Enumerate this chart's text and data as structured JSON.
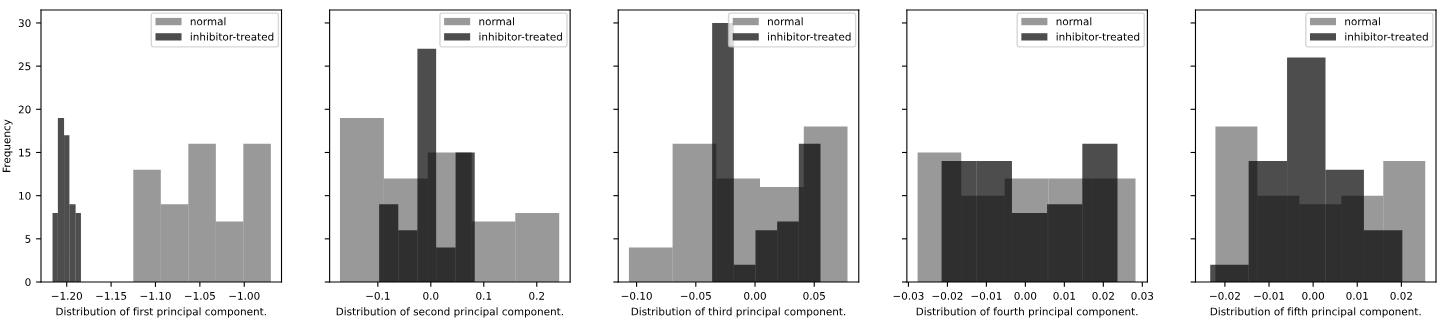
{
  "chart_data": [
    {
      "type": "histogram",
      "xlabel": "Distribution of first principal component.",
      "ylabel": "Frequency",
      "xlim": [
        -1.229,
        -0.958
      ],
      "xticks": [
        {
          "value": -1.2,
          "label": "−1.20"
        },
        {
          "value": -1.15,
          "label": "−1.15"
        },
        {
          "value": -1.1,
          "label": "−1.10"
        },
        {
          "value": -1.05,
          "label": "−1.05"
        },
        {
          "value": -1.0,
          "label": "−1.00"
        }
      ],
      "ylim": [
        0,
        31.5
      ],
      "yticks": [
        0,
        5,
        10,
        15,
        20,
        25,
        30
      ],
      "legend": "top right",
      "bins": [
        -1.125,
        -1.094,
        -1.063,
        -1.032,
        -1.001,
        -0.97
      ],
      "series": [
        {
          "name": "normal",
          "color": "#999999",
          "values": [
            13,
            9,
            16,
            7,
            16
          ]
        },
        {
          "name": "inhibitor-treated",
          "color": "#4d4d4d",
          "bins": [
            -1.216,
            -1.21,
            -1.203,
            -1.197,
            -1.19,
            -1.184
          ],
          "values": [
            8,
            19,
            17,
            9,
            8
          ]
        }
      ]
    },
    {
      "type": "histogram",
      "xlabel": "Distribution of second principal component.",
      "xlim": [
        -0.191,
        0.263
      ],
      "xticks": [
        {
          "value": -0.1,
          "label": "−0.1"
        },
        {
          "value": 0.0,
          "label": "0.0"
        },
        {
          "value": 0.1,
          "label": "0.1"
        },
        {
          "value": 0.2,
          "label": "0.2"
        }
      ],
      "ylim": [
        0,
        31.5
      ],
      "yticks": [
        0,
        5,
        10,
        15,
        20,
        25,
        30
      ],
      "tick_labels": "x",
      "legend": "top right",
      "bins": [
        -0.1715,
        -0.0886,
        -0.0057,
        0.0772,
        0.1595,
        0.2424
      ],
      "series": [
        {
          "name": "normal",
          "color": "#999999",
          "values": [
            19,
            12,
            15,
            7,
            8
          ]
        },
        {
          "name": "inhibitor-treated",
          "color": "#4d4d4d",
          "bins": [
            -0.0975,
            -0.0614,
            -0.0253,
            0.0101,
            0.0468,
            0.0829
          ],
          "values": [
            9,
            6,
            27,
            4,
            15
          ]
        }
      ]
    },
    {
      "type": "histogram",
      "xlabel": "Distribution of third principal component.",
      "xlim": [
        -0.1155,
        0.0876
      ],
      "xticks": [
        {
          "value": -0.1,
          "label": "−0.10"
        },
        {
          "value": -0.05,
          "label": "−0.05"
        },
        {
          "value": 0.0,
          "label": "0.00"
        },
        {
          "value": 0.05,
          "label": "0.05"
        }
      ],
      "ylim": [
        0,
        31.5
      ],
      "yticks": [
        0,
        5,
        10,
        15,
        20,
        25,
        30
      ],
      "tick_labels": "x",
      "legend": "top right",
      "bins": [
        -0.1065,
        -0.0696,
        -0.0327,
        0.0042,
        0.0412,
        0.0781
      ],
      "series": [
        {
          "name": "normal",
          "color": "#999999",
          "values": [
            4,
            16,
            12,
            11,
            18
          ]
        },
        {
          "name": "inhibitor-treated",
          "color": "#4d4d4d",
          "bins": [
            -0.0362,
            -0.0179,
            0.0004,
            0.0187,
            0.037,
            0.0553
          ],
          "values": [
            30,
            2,
            6,
            7,
            16
          ]
        }
      ]
    },
    {
      "type": "histogram",
      "xlabel": "Distribution of fourth principal component.",
      "xlim": [
        -0.0304,
        0.0313
      ],
      "xticks": [
        {
          "value": -0.03,
          "label": "−0.03"
        },
        {
          "value": -0.02,
          "label": "−0.02"
        },
        {
          "value": -0.01,
          "label": "−0.01"
        },
        {
          "value": 0.0,
          "label": "0.00"
        },
        {
          "value": 0.01,
          "label": "0.01"
        },
        {
          "value": 0.02,
          "label": "0.02"
        },
        {
          "value": 0.03,
          "label": "0.03"
        }
      ],
      "ylim": [
        0,
        31.5
      ],
      "yticks": [
        0,
        5,
        10,
        15,
        20,
        25,
        30
      ],
      "tick_labels": "x",
      "legend": "top right",
      "bins": [
        -0.02765,
        -0.01644,
        -0.00531,
        0.00591,
        0.01704,
        0.02825
      ],
      "series": [
        {
          "name": "normal",
          "color": "#999999",
          "values": [
            15,
            10,
            12,
            12,
            12
          ]
        },
        {
          "name": "inhibitor-treated",
          "color": "#4d4d4d",
          "bins": [
            -0.02149,
            -0.01247,
            -0.00344,
            0.00558,
            0.01461,
            0.02363
          ],
          "values": [
            14,
            14,
            8,
            9,
            16
          ]
        }
      ]
    },
    {
      "type": "histogram",
      "xlabel": "Distribution of fifth principal component.",
      "xlim": [
        -0.02667,
        0.02785
      ],
      "xticks": [
        {
          "value": -0.02,
          "label": "−0.02"
        },
        {
          "value": -0.01,
          "label": "−0.01"
        },
        {
          "value": 0.0,
          "label": "0.00"
        },
        {
          "value": 0.01,
          "label": "0.01"
        },
        {
          "value": 0.02,
          "label": "0.02"
        }
      ],
      "ylim": [
        0,
        31.5
      ],
      "yticks": [
        0,
        5,
        10,
        15,
        20,
        25,
        30
      ],
      "tick_labels": "x",
      "legend": "top right",
      "bins": [
        -0.02215,
        -0.01264,
        -0.00313,
        0.00639,
        0.0159,
        0.02541
      ],
      "series": [
        {
          "name": "normal",
          "color": "#999999",
          "values": [
            18,
            10,
            9,
            10,
            14
          ]
        },
        {
          "name": "inhibitor-treated",
          "color": "#4d4d4d",
          "bins": [
            -0.02333,
            -0.01462,
            -0.00591,
            0.0028,
            0.01151,
            0.02022
          ],
          "values": [
            2,
            14,
            26,
            13,
            6
          ]
        }
      ]
    }
  ]
}
